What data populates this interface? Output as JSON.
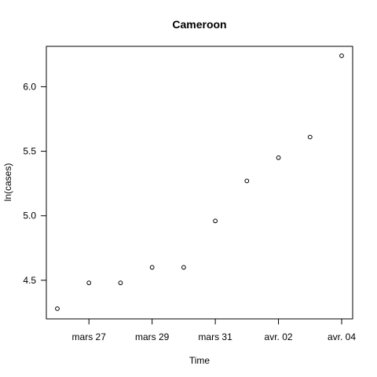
{
  "chart_data": {
    "type": "scatter",
    "title": "Cameroon",
    "xlabel": "Time",
    "ylabel": "ln(cases)",
    "x": [
      "2020-03-25",
      "2020-03-26",
      "2020-03-27",
      "2020-03-28",
      "2020-03-29",
      "2020-03-30",
      "2020-03-31",
      "2020-04-01",
      "2020-04-02",
      "2020-04-03"
    ],
    "y": [
      4.28,
      4.48,
      4.48,
      4.6,
      4.6,
      4.96,
      5.27,
      5.45,
      5.61,
      6.24
    ],
    "xlim": [
      "2020-03-25",
      "2020-04-03"
    ],
    "ylim": [
      4.28,
      6.24
    ],
    "x_ticks": [
      {
        "date": "2020-03-26",
        "label": "mars 27"
      },
      {
        "date": "2020-03-28",
        "label": "mars 29"
      },
      {
        "date": "2020-03-30",
        "label": "mars 31"
      },
      {
        "date": "2020-04-01",
        "label": "avr. 02"
      },
      {
        "date": "2020-04-03",
        "label": "avr. 04"
      }
    ],
    "y_ticks": [
      {
        "value": 4.5,
        "label": "4.5"
      },
      {
        "value": 5.0,
        "label": "5.0"
      },
      {
        "value": 5.5,
        "label": "5.5"
      },
      {
        "value": 6.0,
        "label": "6.0"
      }
    ],
    "grid": false,
    "marker": "open-circle"
  }
}
